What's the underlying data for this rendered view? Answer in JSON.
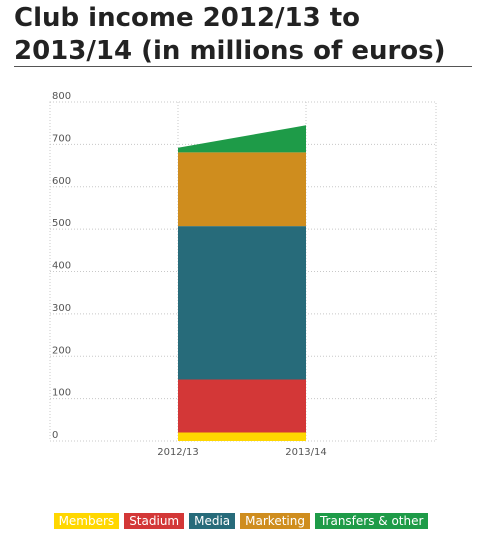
{
  "title_line1": "Club income 2012/13 to",
  "title_line2": "2013/14 (in millions of euros)",
  "chart_data": {
    "type": "area",
    "stacked": true,
    "title": "Club income 2012/13 to 2013/14 (in millions of euros)",
    "categories": [
      "2012/13",
      "2013/14"
    ],
    "series": [
      {
        "name": "Members",
        "color": "#ffd700",
        "values": [
          20,
          20
        ]
      },
      {
        "name": "Stadium",
        "color": "#d33737",
        "values": [
          125,
          125
        ]
      },
      {
        "name": "Media",
        "color": "#276b7a",
        "values": [
          362,
          362
        ]
      },
      {
        "name": "Marketing",
        "color": "#cf8d1e",
        "values": [
          174,
          174
        ]
      },
      {
        "name": "Transfers & other",
        "color": "#1e9b48",
        "values": [
          11,
          64
        ]
      }
    ],
    "y_ticks": [
      0,
      100,
      200,
      300,
      400,
      500,
      600,
      700,
      800
    ],
    "ylim": [
      0,
      800
    ],
    "grid": true,
    "legend_position": "bottom"
  }
}
